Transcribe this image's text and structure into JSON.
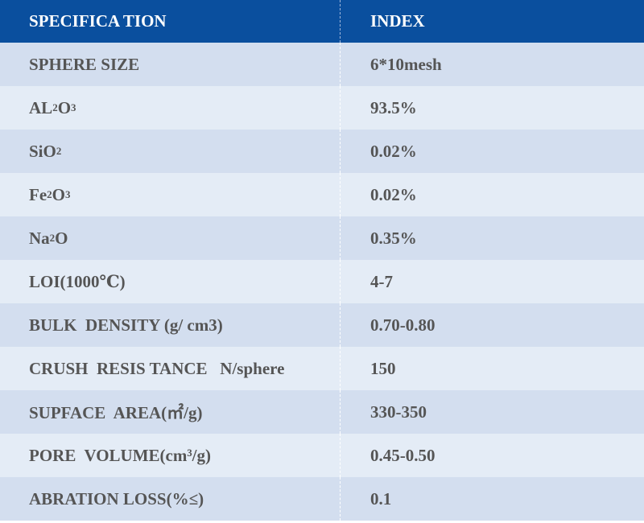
{
  "header": {
    "spec": "SPECIFICA TION",
    "index": "INDEX"
  },
  "rows": [
    {
      "spec": "SPHERE SIZE",
      "value": "6*10mesh"
    },
    {
      "spec_parts": [
        "AL",
        "2",
        "O",
        "3"
      ],
      "value": "93.5%"
    },
    {
      "spec_parts": [
        "SiO",
        "2"
      ],
      "value": "0.02%"
    },
    {
      "spec_parts": [
        "Fe",
        "2",
        "O",
        "3"
      ],
      "value": "0.02%"
    },
    {
      "spec_parts": [
        "Na",
        "2",
        "O"
      ],
      "value": "0.35%"
    },
    {
      "spec": "LOI(1000℃)",
      "value": "4-7"
    },
    {
      "spec": "BULK  DENSITY (g/ cm3)",
      "value": "0.70-0.80"
    },
    {
      "spec": "CRUSH  RESIS TANCE   N/sphere",
      "value": "150"
    },
    {
      "spec": "SUPFACE  AREA(㎡/g)",
      "value": "330-350"
    },
    {
      "spec": "PORE  VOLUME(cm³/g)",
      "value": "0.45-0.50"
    },
    {
      "spec": "ABRATION LOSS(%≤)",
      "value": "0.1"
    }
  ],
  "colors": {
    "header_bg": "#0a4f9e",
    "row_odd_bg": "#d3deef",
    "row_even_bg": "#e4ecf6",
    "text": "#555555"
  }
}
